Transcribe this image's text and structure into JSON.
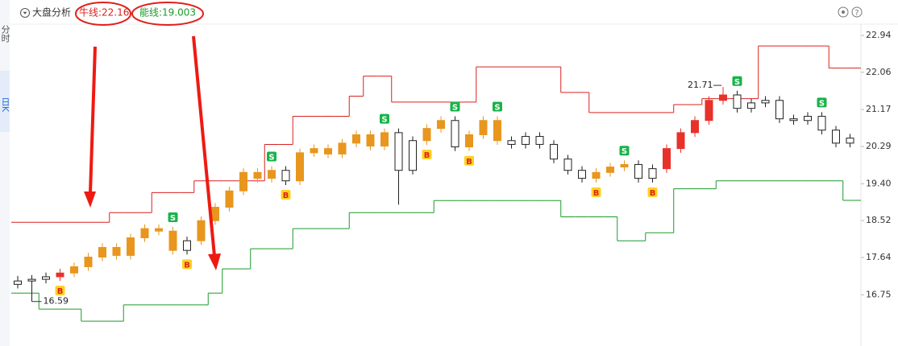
{
  "sidebar": [
    "分时",
    "日K"
  ],
  "header": {
    "menu": "大盘分析",
    "help": "?"
  },
  "chart_data": {
    "type": "candlestick",
    "ylim": [
      15.72,
      23.21
    ],
    "yticks": [
      22.94,
      22.06,
      21.17,
      20.29,
      {
        "value": 19.4,
        "label": "19.40"
      },
      18.52,
      17.64,
      16.75
    ],
    "open": [
      17.0,
      17.08,
      17.12,
      17.18,
      17.27,
      17.42,
      17.65,
      17.88,
      17.69,
      18.11,
      18.33,
      18.27,
      17.81,
      18.04,
      18.52,
      18.84,
      19.23,
      19.67,
      19.53,
      19.72,
      19.47,
      20.14,
      20.24,
      20.11,
      20.37,
      20.57,
      20.3,
      20.62,
      19.72,
      20.43,
      20.72,
      20.91,
      20.28,
      20.57,
      20.91,
      20.43,
      20.34,
      20.53,
      20.34,
      19.99,
      19.72,
      19.53,
      19.67,
      19.8,
      19.86,
      19.53,
      19.76,
      20.24,
      20.62,
      20.91,
      21.39,
      21.52,
      21.2,
      21.33,
      21.39,
      20.95,
      20.91,
      21.01,
      20.68,
      20.37
    ],
    "high": [
      17.2,
      17.22,
      17.28,
      17.37,
      17.52,
      17.75,
      17.98,
      17.98,
      18.21,
      18.43,
      18.43,
      18.37,
      18.14,
      18.62,
      18.94,
      19.33,
      19.77,
      19.77,
      19.82,
      19.82,
      20.24,
      20.34,
      20.34,
      20.47,
      20.67,
      20.67,
      20.72,
      20.72,
      20.53,
      20.82,
      21.01,
      21.01,
      20.67,
      21.01,
      21.01,
      20.53,
      20.63,
      20.63,
      20.44,
      20.09,
      19.82,
      19.77,
      19.9,
      19.96,
      19.96,
      19.86,
      20.34,
      20.72,
      21.01,
      21.49,
      21.71,
      21.62,
      21.43,
      21.49,
      21.49,
      21.05,
      21.11,
      21.11,
      20.78,
      20.59
    ],
    "low": [
      16.9,
      16.59,
      17.02,
      17.08,
      17.17,
      17.32,
      17.55,
      17.59,
      17.59,
      18.01,
      18.17,
      17.71,
      17.71,
      17.94,
      18.42,
      18.74,
      19.13,
      19.43,
      19.43,
      19.37,
      19.37,
      20.04,
      20.01,
      20.01,
      20.27,
      20.2,
      20.2,
      18.9,
      19.62,
      20.33,
      20.62,
      20.18,
      20.18,
      20.47,
      20.33,
      20.24,
      20.24,
      20.24,
      19.89,
      19.62,
      19.43,
      19.43,
      19.57,
      19.7,
      19.43,
      19.43,
      19.66,
      20.14,
      20.52,
      20.81,
      21.29,
      21.1,
      21.1,
      21.23,
      20.85,
      20.81,
      20.81,
      20.58,
      20.27,
      20.27
    ],
    "close": [
      17.08,
      17.12,
      17.18,
      17.27,
      17.42,
      17.65,
      17.88,
      17.69,
      18.11,
      18.33,
      18.27,
      17.81,
      18.04,
      18.52,
      18.84,
      19.23,
      19.67,
      19.53,
      19.72,
      19.47,
      20.14,
      20.24,
      20.11,
      20.37,
      20.57,
      20.3,
      20.62,
      19.72,
      20.43,
      20.72,
      20.91,
      20.28,
      20.57,
      20.91,
      20.43,
      20.34,
      20.53,
      20.34,
      19.99,
      19.72,
      19.53,
      19.67,
      19.8,
      19.86,
      19.53,
      19.76,
      20.24,
      20.62,
      20.91,
      21.39,
      21.52,
      21.2,
      21.33,
      21.39,
      20.95,
      20.91,
      21.01,
      20.68,
      20.37,
      20.49
    ],
    "candle_colors": [
      "#ffffff",
      "#ffffff",
      "#ffffff",
      "#e8312a",
      "#e8961e",
      "#e8961e",
      "#e8961e",
      "#e8961e",
      "#e8961e",
      "#e8961e",
      "#e8961e",
      "#e8961e",
      "#ffffff",
      "#e8961e",
      "#e8961e",
      "#e8961e",
      "#e8961e",
      "#e8961e",
      "#e8961e",
      "#ffffff",
      "#e8961e",
      "#e8961e",
      "#e8961e",
      "#e8961e",
      "#e8961e",
      "#e8961e",
      "#e8961e",
      "#ffffff",
      "#ffffff",
      "#e8961e",
      "#e8961e",
      "#ffffff",
      "#e8961e",
      "#e8961e",
      "#e8961e",
      "#ffffff",
      "#ffffff",
      "#ffffff",
      "#ffffff",
      "#ffffff",
      "#ffffff",
      "#e8961e",
      "#e8961e",
      "#e8961e",
      "#ffffff",
      "#ffffff",
      "#e8312a",
      "#e8312a",
      "#e8312a",
      "#e8312a",
      "#e8312a",
      "#ffffff",
      "#ffffff",
      "#ffffff",
      "#ffffff",
      "#ffffff",
      "#ffffff",
      "#ffffff",
      "#ffffff",
      "#ffffff"
    ],
    "signals": [
      null,
      null,
      null,
      "B",
      null,
      null,
      null,
      null,
      null,
      null,
      null,
      "S",
      "B",
      null,
      null,
      null,
      null,
      null,
      "S",
      "B",
      null,
      null,
      null,
      null,
      null,
      null,
      "S",
      null,
      null,
      "B",
      null,
      "S",
      "B",
      null,
      "S",
      null,
      null,
      null,
      null,
      null,
      null,
      "B",
      null,
      "S",
      null,
      "B",
      null,
      null,
      null,
      null,
      null,
      "S",
      null,
      null,
      null,
      null,
      null,
      "S",
      null,
      null
    ],
    "series": [
      {
        "name": "牛线",
        "label": "牛线:22.16",
        "color": "#d9201e",
        "values": [
          18.48,
          18.48,
          18.48,
          18.48,
          18.48,
          18.48,
          18.48,
          18.71,
          18.71,
          18.71,
          19.19,
          19.19,
          19.19,
          19.47,
          19.47,
          19.47,
          19.47,
          19.47,
          20.34,
          20.34,
          21.01,
          21.01,
          21.01,
          21.01,
          21.49,
          21.97,
          21.97,
          21.35,
          21.35,
          21.35,
          21.35,
          21.35,
          21.35,
          22.19,
          22.19,
          22.19,
          22.19,
          22.19,
          22.19,
          21.58,
          21.58,
          21.1,
          21.1,
          21.1,
          21.1,
          21.1,
          21.1,
          21.29,
          21.29,
          21.43,
          21.43,
          21.43,
          21.43,
          22.69,
          22.69,
          22.69,
          22.69,
          22.69,
          22.16,
          22.16
        ]
      },
      {
        "name": "能线",
        "label": "能线:19.003",
        "color": "#1a9a2a",
        "values": [
          16.79,
          16.79,
          16.41,
          16.41,
          16.41,
          16.12,
          16.12,
          16.12,
          16.51,
          16.51,
          16.51,
          16.51,
          16.51,
          16.51,
          16.79,
          17.37,
          17.37,
          17.85,
          17.85,
          17.85,
          18.33,
          18.33,
          18.33,
          18.33,
          18.71,
          18.71,
          18.71,
          18.71,
          18.71,
          18.71,
          19.0,
          19.0,
          19.0,
          19.0,
          19.0,
          19.0,
          19.0,
          19.0,
          19.0,
          18.61,
          18.61,
          18.61,
          18.61,
          18.04,
          18.04,
          18.23,
          18.23,
          19.28,
          19.28,
          19.28,
          19.47,
          19.47,
          19.47,
          19.47,
          19.47,
          19.47,
          19.47,
          19.47,
          19.47,
          19.003
        ]
      }
    ]
  }
}
